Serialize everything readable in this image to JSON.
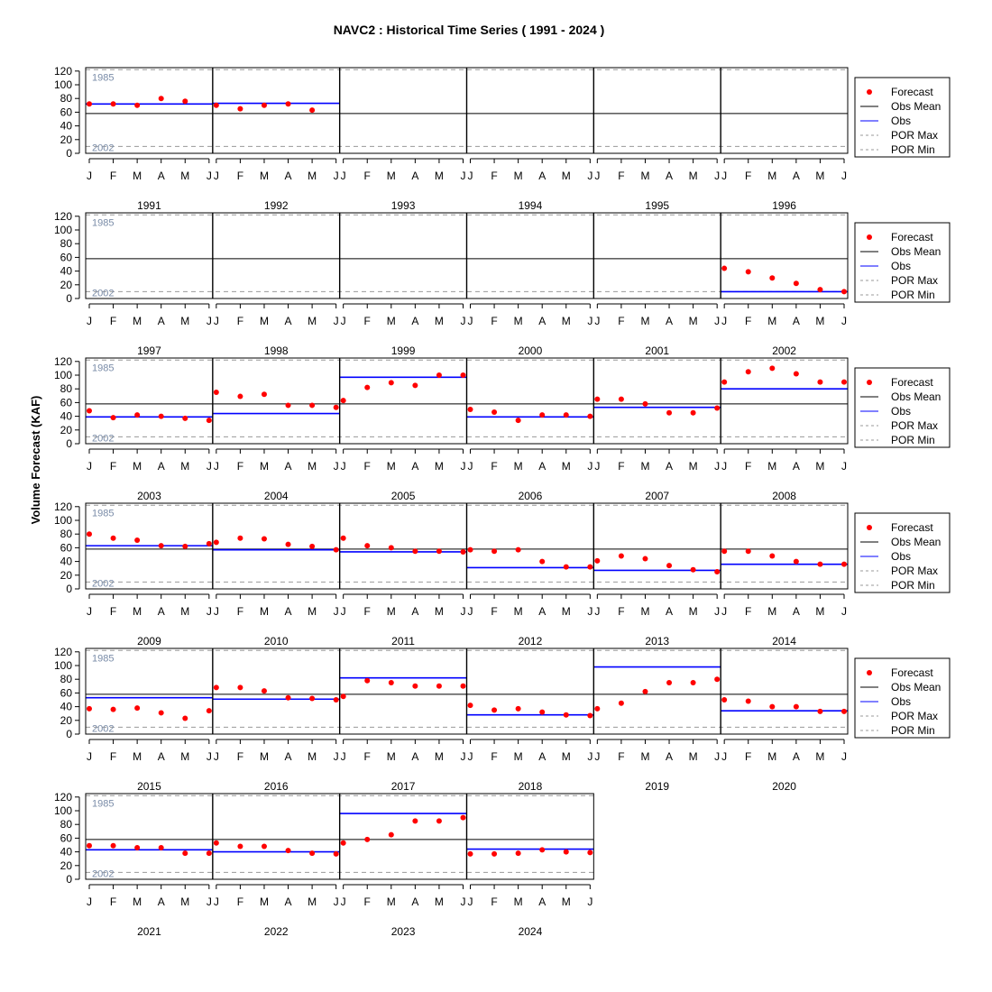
{
  "chart_data": {
    "type": "scatter",
    "title": "NAVC2 : Historical Time Series ( 1991 - 2024 )",
    "ylabel": "Volume Forecast (KAF)",
    "ylim": [
      0,
      125
    ],
    "yticks": [
      0,
      20,
      40,
      60,
      80,
      100,
      120
    ],
    "months": [
      "J",
      "F",
      "M",
      "A",
      "M",
      "J"
    ],
    "obs_mean": 58,
    "por_max": {
      "value": 122,
      "year": "1985"
    },
    "por_min": {
      "value": 10,
      "year": "2002"
    },
    "legend": [
      "Forecast",
      "Obs Mean",
      "Obs",
      "POR Max",
      "POR Min"
    ],
    "legend_placement": "right of each row",
    "colors": {
      "forecast": "#ff0000",
      "obs_mean": "#000000",
      "obs": "#0000ff",
      "por": "#999999",
      "por_label": "#7a8ca8"
    },
    "years": [
      {
        "year": "1991",
        "forecast": [
          72,
          72,
          70,
          80,
          76
        ],
        "obs": 72
      },
      {
        "year": "1992",
        "forecast": [
          70,
          65,
          70,
          72,
          63
        ],
        "obs": 73
      },
      {
        "year": "1993",
        "forecast": [],
        "obs": null
      },
      {
        "year": "1994",
        "forecast": [],
        "obs": null
      },
      {
        "year": "1995",
        "forecast": [],
        "obs": null
      },
      {
        "year": "1996",
        "forecast": [],
        "obs": null
      },
      {
        "year": "1997",
        "forecast": [],
        "obs": null
      },
      {
        "year": "1998",
        "forecast": [],
        "obs": null
      },
      {
        "year": "1999",
        "forecast": [],
        "obs": null
      },
      {
        "year": "2000",
        "forecast": [],
        "obs": null
      },
      {
        "year": "2001",
        "forecast": [],
        "obs": null
      },
      {
        "year": "2002",
        "forecast": [
          44,
          39,
          30,
          22,
          13,
          10
        ],
        "obs": 10
      },
      {
        "year": "2003",
        "forecast": [
          48,
          38,
          42,
          40,
          37,
          34
        ],
        "obs": 39
      },
      {
        "year": "2004",
        "forecast": [
          75,
          69,
          72,
          56,
          56,
          53
        ],
        "obs": 44
      },
      {
        "year": "2005",
        "forecast": [
          63,
          82,
          89,
          85,
          100,
          100
        ],
        "obs": 97
      },
      {
        "year": "2006",
        "forecast": [
          50,
          46,
          34,
          42,
          42,
          40
        ],
        "obs": 39
      },
      {
        "year": "2007",
        "forecast": [
          65,
          65,
          58,
          45,
          45,
          52
        ],
        "obs": 53
      },
      {
        "year": "2008",
        "forecast": [
          90,
          105,
          110,
          102,
          90,
          90
        ],
        "obs": 80
      },
      {
        "year": "2009",
        "forecast": [
          80,
          74,
          71,
          63,
          62,
          66
        ],
        "obs": 63
      },
      {
        "year": "2010",
        "forecast": [
          68,
          74,
          73,
          65,
          62,
          57
        ],
        "obs": 57
      },
      {
        "year": "2011",
        "forecast": [
          74,
          63,
          60,
          55,
          55,
          54
        ],
        "obs": 54
      },
      {
        "year": "2012",
        "forecast": [
          57,
          55,
          57,
          40,
          32,
          32
        ],
        "obs": 31
      },
      {
        "year": "2013",
        "forecast": [
          41,
          48,
          44,
          34,
          28,
          25
        ],
        "obs": 27
      },
      {
        "year": "2014",
        "forecast": [
          55,
          55,
          48,
          40,
          36,
          36
        ],
        "obs": 36
      },
      {
        "year": "2015",
        "forecast": [
          37,
          36,
          38,
          31,
          23,
          34
        ],
        "obs": 53
      },
      {
        "year": "2016",
        "forecast": [
          68,
          68,
          63,
          53,
          52,
          50
        ],
        "obs": 51
      },
      {
        "year": "2017",
        "forecast": [
          55,
          78,
          75,
          70,
          70,
          70
        ],
        "obs": 82
      },
      {
        "year": "2018",
        "forecast": [
          42,
          35,
          37,
          32,
          28,
          27
        ],
        "obs": 28
      },
      {
        "year": "2019",
        "forecast": [
          37,
          45,
          62,
          75,
          75,
          80
        ],
        "obs": 98
      },
      {
        "year": "2020",
        "forecast": [
          50,
          48,
          40,
          40,
          33,
          33
        ],
        "obs": 34
      },
      {
        "year": "2021",
        "forecast": [
          49,
          49,
          46,
          46,
          38,
          38
        ],
        "obs": 43
      },
      {
        "year": "2022",
        "forecast": [
          53,
          48,
          48,
          42,
          38,
          37
        ],
        "obs": 40
      },
      {
        "year": "2023",
        "forecast": [
          53,
          58,
          65,
          85,
          85,
          90
        ],
        "obs": 96
      },
      {
        "year": "2024",
        "forecast": [
          37,
          37,
          38,
          43,
          40,
          39
        ],
        "obs": 44
      }
    ]
  }
}
